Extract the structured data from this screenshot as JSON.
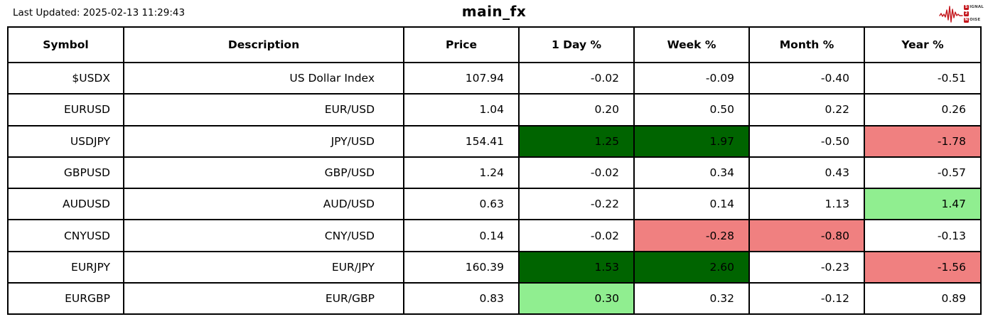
{
  "page": {
    "last_updated": "Last Updated: 2025-02-13 11:29:43",
    "title": "main_fx"
  },
  "logo": {
    "signal_initial": "S",
    "signal_rest": "IGNAL",
    "middle": "2",
    "noise_initial": "N",
    "noise_rest": "OISE",
    "accent_color": "#c4161c"
  },
  "colors": {
    "strong_gain": "#006400",
    "gain": "#90ee90",
    "loss": "#f08080",
    "grid": "#000000",
    "background": "#ffffff"
  },
  "chart_data": {
    "type": "table",
    "title": "main_fx",
    "columns": [
      "Symbol",
      "Description",
      "Price",
      "1 Day %",
      "Week %",
      "Month %",
      "Year %"
    ],
    "rows": [
      [
        "$USDX",
        "US Dollar Index",
        "107.94",
        "-0.02",
        "-0.09",
        "-0.40",
        "-0.51"
      ],
      [
        "EURUSD",
        "EUR/USD",
        "1.04",
        "0.20",
        "0.50",
        "0.22",
        "0.26"
      ],
      [
        "USDJPY",
        "JPY/USD",
        "154.41",
        "1.25",
        "1.97",
        "-0.50",
        "-1.78"
      ],
      [
        "GBPUSD",
        "GBP/USD",
        "1.24",
        "-0.02",
        "0.34",
        "0.43",
        "-0.57"
      ],
      [
        "AUDUSD",
        "AUD/USD",
        "0.63",
        "-0.22",
        "0.14",
        "1.13",
        "1.47"
      ],
      [
        "CNYUSD",
        "CNY/USD",
        "0.14",
        "-0.02",
        "-0.28",
        "-0.80",
        "-0.13"
      ],
      [
        "EURJPY",
        "EUR/JPY",
        "160.39",
        "1.53",
        "2.60",
        "-0.23",
        "-1.56"
      ],
      [
        "EURGBP",
        "EUR/GBP",
        "0.83",
        "0.30",
        "0.32",
        "-0.12",
        "0.89"
      ]
    ],
    "cell_highlights": [
      {
        "row": 2,
        "col": 3,
        "color": "strong_gain"
      },
      {
        "row": 2,
        "col": 4,
        "color": "strong_gain"
      },
      {
        "row": 2,
        "col": 6,
        "color": "loss"
      },
      {
        "row": 4,
        "col": 6,
        "color": "gain"
      },
      {
        "row": 5,
        "col": 4,
        "color": "loss"
      },
      {
        "row": 5,
        "col": 5,
        "color": "loss"
      },
      {
        "row": 6,
        "col": 3,
        "color": "strong_gain"
      },
      {
        "row": 6,
        "col": 4,
        "color": "strong_gain"
      },
      {
        "row": 6,
        "col": 6,
        "color": "loss"
      },
      {
        "row": 7,
        "col": 3,
        "color": "gain"
      }
    ]
  }
}
